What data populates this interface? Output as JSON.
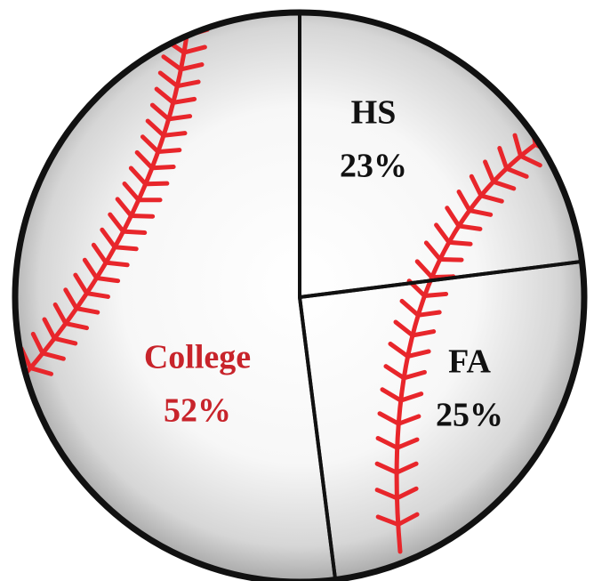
{
  "chart_data": {
    "type": "pie",
    "categories": [
      "HS",
      "FA",
      "College"
    ],
    "values": [
      23,
      25,
      52
    ],
    "value_labels": [
      "23%",
      "25%",
      "52%"
    ],
    "label_colors": [
      "#111111",
      "#111111",
      "#c8242b"
    ],
    "seam_color": "#e8262b"
  }
}
